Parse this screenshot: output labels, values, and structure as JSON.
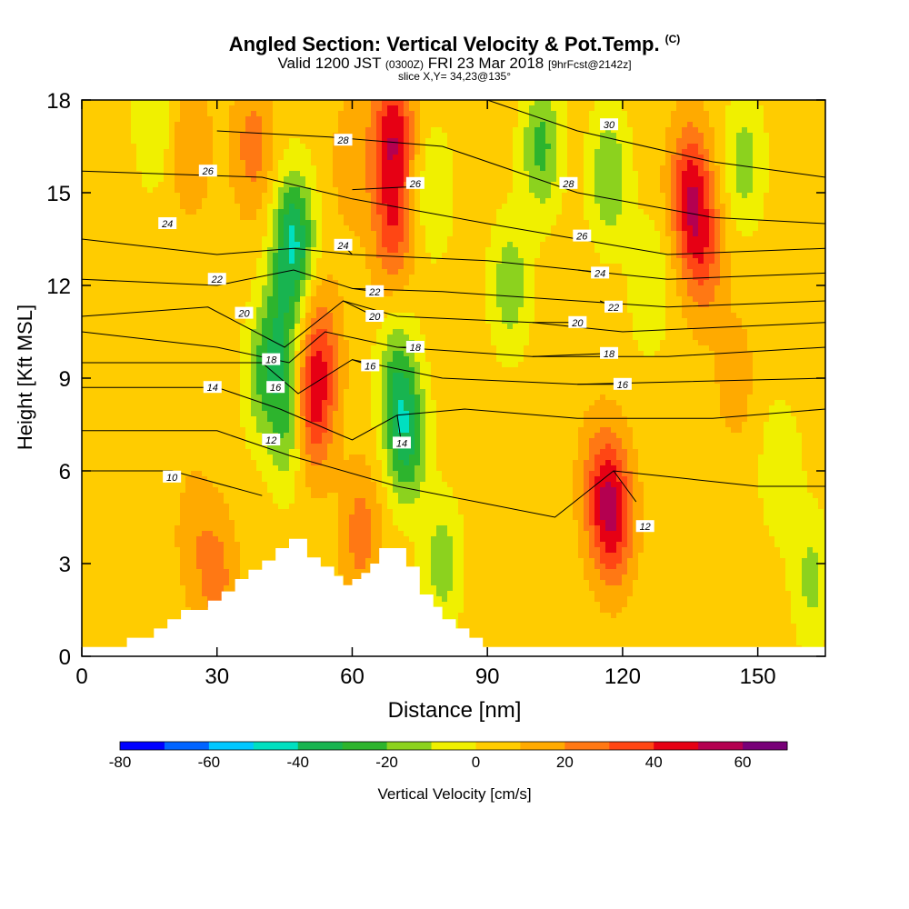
{
  "title": "Angled Section: Vertical Velocity & Pot.Temp.",
  "title_tag": "(C)",
  "subtitle": {
    "prefix": "Valid 1200 JST",
    "zulu": "(0300Z)",
    "date": "FRI 23 Mar 2018",
    "fcst": "[9hrFcst@2142z]"
  },
  "slice_text": "slice X,Y= 34,23@135°",
  "colors": {
    "mountain": "#ffffff",
    "contour": "#000000",
    "label_box": "#ffffff"
  },
  "chart_data": {
    "type": "heatmap",
    "x_label": "Distance [nm]",
    "y_label": "Height [Kft MSL]",
    "xlim": [
      0,
      165
    ],
    "ylim": [
      0,
      18
    ],
    "x_ticks": [
      "0",
      "30",
      "60",
      "90",
      "120",
      "150"
    ],
    "y_ticks": [
      "0",
      "3",
      "6",
      "9",
      "12",
      "15",
      "18"
    ],
    "colorbar": {
      "label": "Vertical Velocity [cm/s]",
      "range": [
        -80,
        70
      ],
      "tick_labels": [
        "-80",
        "-60",
        "-40",
        "-20",
        "0",
        "20",
        "40",
        "60"
      ],
      "colors": [
        "#0000ff",
        "#0064ff",
        "#00c8ff",
        "#00e0c0",
        "#18b450",
        "#2db42d",
        "#8cd21e",
        "#f0f000",
        "#ffcc00",
        "#ffaa00",
        "#ff7814",
        "#ff4614",
        "#e60014",
        "#b40050",
        "#780078"
      ]
    },
    "features": [
      {
        "x": 47,
        "y": 13.5,
        "w": -45
      },
      {
        "x": 44,
        "y": 10.5,
        "w": -25
      },
      {
        "x": 40,
        "y": 9,
        "w": -20
      },
      {
        "x": 46,
        "y": 7.5,
        "w": -28
      },
      {
        "x": 51,
        "y": 8,
        "w": 38
      },
      {
        "x": 53,
        "y": 10,
        "w": 22
      },
      {
        "x": 60,
        "y": 16,
        "w": 12
      },
      {
        "x": 62,
        "y": 4,
        "w": 20
      },
      {
        "x": 69,
        "y": 17,
        "w": 40
      },
      {
        "x": 69,
        "y": 14,
        "w": 30
      },
      {
        "x": 72,
        "y": 7,
        "w": -35
      },
      {
        "x": 70,
        "y": 9,
        "w": -25
      },
      {
        "x": 80,
        "y": 3,
        "w": -20
      },
      {
        "x": 78,
        "y": 15,
        "w": -15
      },
      {
        "x": 95,
        "y": 12,
        "w": -22
      },
      {
        "x": 102,
        "y": 16.5,
        "w": -28
      },
      {
        "x": 117,
        "y": 15.5,
        "w": -25
      },
      {
        "x": 126,
        "y": 12,
        "w": -15
      },
      {
        "x": 118,
        "y": 4.5,
        "w": 38
      },
      {
        "x": 115,
        "y": 5.5,
        "w": 22
      },
      {
        "x": 135,
        "y": 15,
        "w": 40
      },
      {
        "x": 138,
        "y": 13,
        "w": 25
      },
      {
        "x": 147,
        "y": 16,
        "w": -20
      },
      {
        "x": 155,
        "y": 6,
        "w": -15
      },
      {
        "x": 162,
        "y": 2.5,
        "w": -18
      },
      {
        "x": 25,
        "y": 4,
        "w": 10
      },
      {
        "x": 24,
        "y": 16.5,
        "w": 15
      },
      {
        "x": 16,
        "y": 17.3,
        "w": -15
      },
      {
        "x": 38,
        "y": 16.5,
        "w": 20
      },
      {
        "x": 30,
        "y": 2.5,
        "w": 18
      },
      {
        "x": 10,
        "y": 10,
        "w": 5
      },
      {
        "x": 145,
        "y": 9,
        "w": 10
      }
    ],
    "terrain": [
      [
        0,
        0.3
      ],
      [
        10,
        0.6
      ],
      [
        16,
        0.9
      ],
      [
        19,
        1.2
      ],
      [
        22,
        1.5
      ],
      [
        28,
        1.8
      ],
      [
        31,
        2.1
      ],
      [
        34,
        2.5
      ],
      [
        37,
        2.8
      ],
      [
        40,
        3.1
      ],
      [
        43,
        3.5
      ],
      [
        46,
        3.8
      ],
      [
        50,
        3.2
      ],
      [
        53,
        2.9
      ],
      [
        56,
        2.6
      ],
      [
        58,
        2.3
      ],
      [
        60,
        2.5
      ],
      [
        62,
        2.7
      ],
      [
        64,
        3.0
      ],
      [
        66,
        3.5
      ],
      [
        69,
        3.5
      ],
      [
        72,
        2.9
      ],
      [
        75,
        2.0
      ],
      [
        78,
        1.6
      ],
      [
        80,
        1.2
      ],
      [
        83,
        0.9
      ],
      [
        86,
        0.6
      ],
      [
        89,
        0.3
      ],
      [
        165,
        0.3
      ]
    ],
    "theta_contours": [
      {
        "level": 10,
        "label": "10",
        "points": [
          [
            0,
            6.0
          ],
          [
            20,
            6.0
          ],
          [
            40,
            5.2
          ]
        ],
        "label_at": [
          20,
          5.8
        ]
      },
      {
        "level": 12,
        "label": "12",
        "points": [
          [
            0,
            7.3
          ],
          [
            30,
            7.3
          ],
          [
            46,
            6.5
          ],
          [
            70,
            5.5
          ],
          [
            105,
            4.5
          ],
          [
            118,
            6.0
          ],
          [
            150,
            5.5
          ],
          [
            165,
            5.5
          ]
        ],
        "label_at": [
          42,
          7.0
        ]
      },
      {
        "level": 12,
        "label": "12",
        "points": [
          [
            118,
            6.0
          ],
          [
            123,
            5.0
          ]
        ],
        "label_at": [
          125,
          4.2
        ]
      },
      {
        "level": 14,
        "label": "14",
        "points": [
          [
            0,
            8.7
          ],
          [
            30,
            8.7
          ],
          [
            44,
            8.0
          ],
          [
            60,
            7.0
          ],
          [
            70,
            7.8
          ],
          [
            85,
            8.0
          ],
          [
            110,
            7.7
          ],
          [
            140,
            7.7
          ],
          [
            165,
            8.0
          ]
        ],
        "label_at": [
          29,
          8.7
        ]
      },
      {
        "level": 14,
        "label": "14",
        "points": [
          [
            70,
            7.8
          ],
          [
            71,
            6.8
          ]
        ],
        "label_at": [
          71,
          6.9
        ]
      },
      {
        "level": 16,
        "label": "16",
        "points": [
          [
            0,
            9.5
          ],
          [
            40,
            9.5
          ],
          [
            48,
            8.5
          ],
          [
            60,
            9.6
          ],
          [
            80,
            9.0
          ],
          [
            110,
            8.8
          ],
          [
            165,
            9.0
          ]
        ],
        "label_at": [
          43,
          8.7
        ]
      },
      {
        "level": 16,
        "label": "16",
        "points": [
          [
            60,
            9.6
          ],
          [
            64,
            9.4
          ]
        ],
        "label_at": [
          64,
          9.4
        ]
      },
      {
        "level": 16,
        "label": "16",
        "points": [
          [
            110,
            8.8
          ],
          [
            120,
            8.8
          ]
        ],
        "label_at": [
          120,
          8.8
        ]
      },
      {
        "level": 18,
        "label": "18",
        "points": [
          [
            0,
            10.5
          ],
          [
            30,
            10.0
          ],
          [
            46,
            9.5
          ],
          [
            54,
            10.5
          ],
          [
            70,
            10.0
          ],
          [
            100,
            9.7
          ],
          [
            130,
            9.7
          ],
          [
            165,
            10.0
          ]
        ],
        "label_at": [
          42,
          9.6
        ]
      },
      {
        "level": 18,
        "label": "18",
        "points": [
          [
            70,
            10.0
          ],
          [
            74,
            10.0
          ]
        ],
        "label_at": [
          74,
          10.0
        ]
      },
      {
        "level": 18,
        "label": "18",
        "points": [
          [
            100,
            9.7
          ],
          [
            117,
            9.8
          ]
        ],
        "label_at": [
          117,
          9.8
        ]
      },
      {
        "level": 20,
        "label": "20",
        "points": [
          [
            0,
            11.0
          ],
          [
            28,
            11.3
          ],
          [
            45,
            10.0
          ],
          [
            58,
            11.5
          ],
          [
            70,
            11.0
          ],
          [
            100,
            10.8
          ],
          [
            120,
            10.5
          ],
          [
            165,
            10.8
          ]
        ],
        "label_at": [
          36,
          11.1
        ]
      },
      {
        "level": 20,
        "label": "20",
        "points": [
          [
            58,
            11.5
          ],
          [
            65,
            11.0
          ]
        ],
        "label_at": [
          65,
          11.0
        ]
      },
      {
        "level": 20,
        "label": "20",
        "points": [
          [
            100,
            10.8
          ],
          [
            110,
            10.8
          ]
        ],
        "label_at": [
          110,
          10.8
        ]
      },
      {
        "level": 22,
        "label": "22",
        "points": [
          [
            0,
            12.2
          ],
          [
            30,
            12.0
          ],
          [
            47,
            12.5
          ],
          [
            60,
            11.9
          ],
          [
            80,
            11.8
          ],
          [
            110,
            11.5
          ],
          [
            130,
            11.3
          ],
          [
            165,
            11.5
          ]
        ],
        "label_at": [
          30,
          12.2
        ]
      },
      {
        "level": 22,
        "label": "22",
        "points": [
          [
            60,
            11.9
          ],
          [
            65,
            11.8
          ]
        ],
        "label_at": [
          65,
          11.8
        ]
      },
      {
        "level": 22,
        "label": "22",
        "points": [
          [
            115,
            11.5
          ],
          [
            118,
            11.3
          ]
        ],
        "label_at": [
          118,
          11.3
        ]
      },
      {
        "level": 24,
        "label": "24",
        "points": [
          [
            0,
            13.5
          ],
          [
            30,
            13.0
          ],
          [
            47,
            13.2
          ],
          [
            60,
            13.0
          ],
          [
            90,
            12.8
          ],
          [
            110,
            12.5
          ],
          [
            130,
            12.2
          ],
          [
            165,
            12.4
          ]
        ],
        "label_at": [
          19,
          14.0
        ]
      },
      {
        "level": 24,
        "label": "24",
        "points": [
          [
            60,
            13.0
          ],
          [
            58,
            13.3
          ]
        ],
        "label_at": [
          58,
          13.3
        ]
      },
      {
        "level": 24,
        "label": "24",
        "points": [
          [
            110,
            12.5
          ],
          [
            115,
            12.4
          ]
        ],
        "label_at": [
          115,
          12.4
        ]
      },
      {
        "level": 26,
        "label": "26",
        "points": [
          [
            0,
            15.7
          ],
          [
            40,
            15.5
          ],
          [
            60,
            14.8
          ],
          [
            90,
            14.0
          ],
          [
            110,
            13.5
          ],
          [
            130,
            13.0
          ],
          [
            165,
            13.2
          ]
        ],
        "label_at": [
          28,
          15.7
        ]
      },
      {
        "level": 26,
        "label": "26",
        "points": [
          [
            60,
            15.1
          ],
          [
            74,
            15.2
          ]
        ],
        "label_at": [
          74,
          15.3
        ]
      },
      {
        "level": 26,
        "label": "26",
        "points": [
          [
            110,
            13.5
          ],
          [
            111,
            13.5
          ]
        ],
        "label_at": [
          111,
          13.6
        ]
      },
      {
        "level": 28,
        "label": "28",
        "points": [
          [
            30,
            17.0
          ],
          [
            55,
            16.8
          ],
          [
            80,
            16.5
          ],
          [
            110,
            15.0
          ],
          [
            140,
            14.2
          ],
          [
            165,
            14.0
          ]
        ],
        "label_at": [
          58,
          16.7
        ]
      },
      {
        "level": 28,
        "label": "28",
        "points": [
          [
            108,
            15.5
          ],
          [
            108,
            15.3
          ]
        ],
        "label_at": [
          108,
          15.3
        ]
      },
      {
        "level": 30,
        "label": "30",
        "points": [
          [
            90,
            18.0
          ],
          [
            110,
            17.0
          ],
          [
            140,
            16.0
          ],
          [
            165,
            15.5
          ]
        ],
        "label_at": [
          117,
          17.2
        ]
      }
    ]
  }
}
